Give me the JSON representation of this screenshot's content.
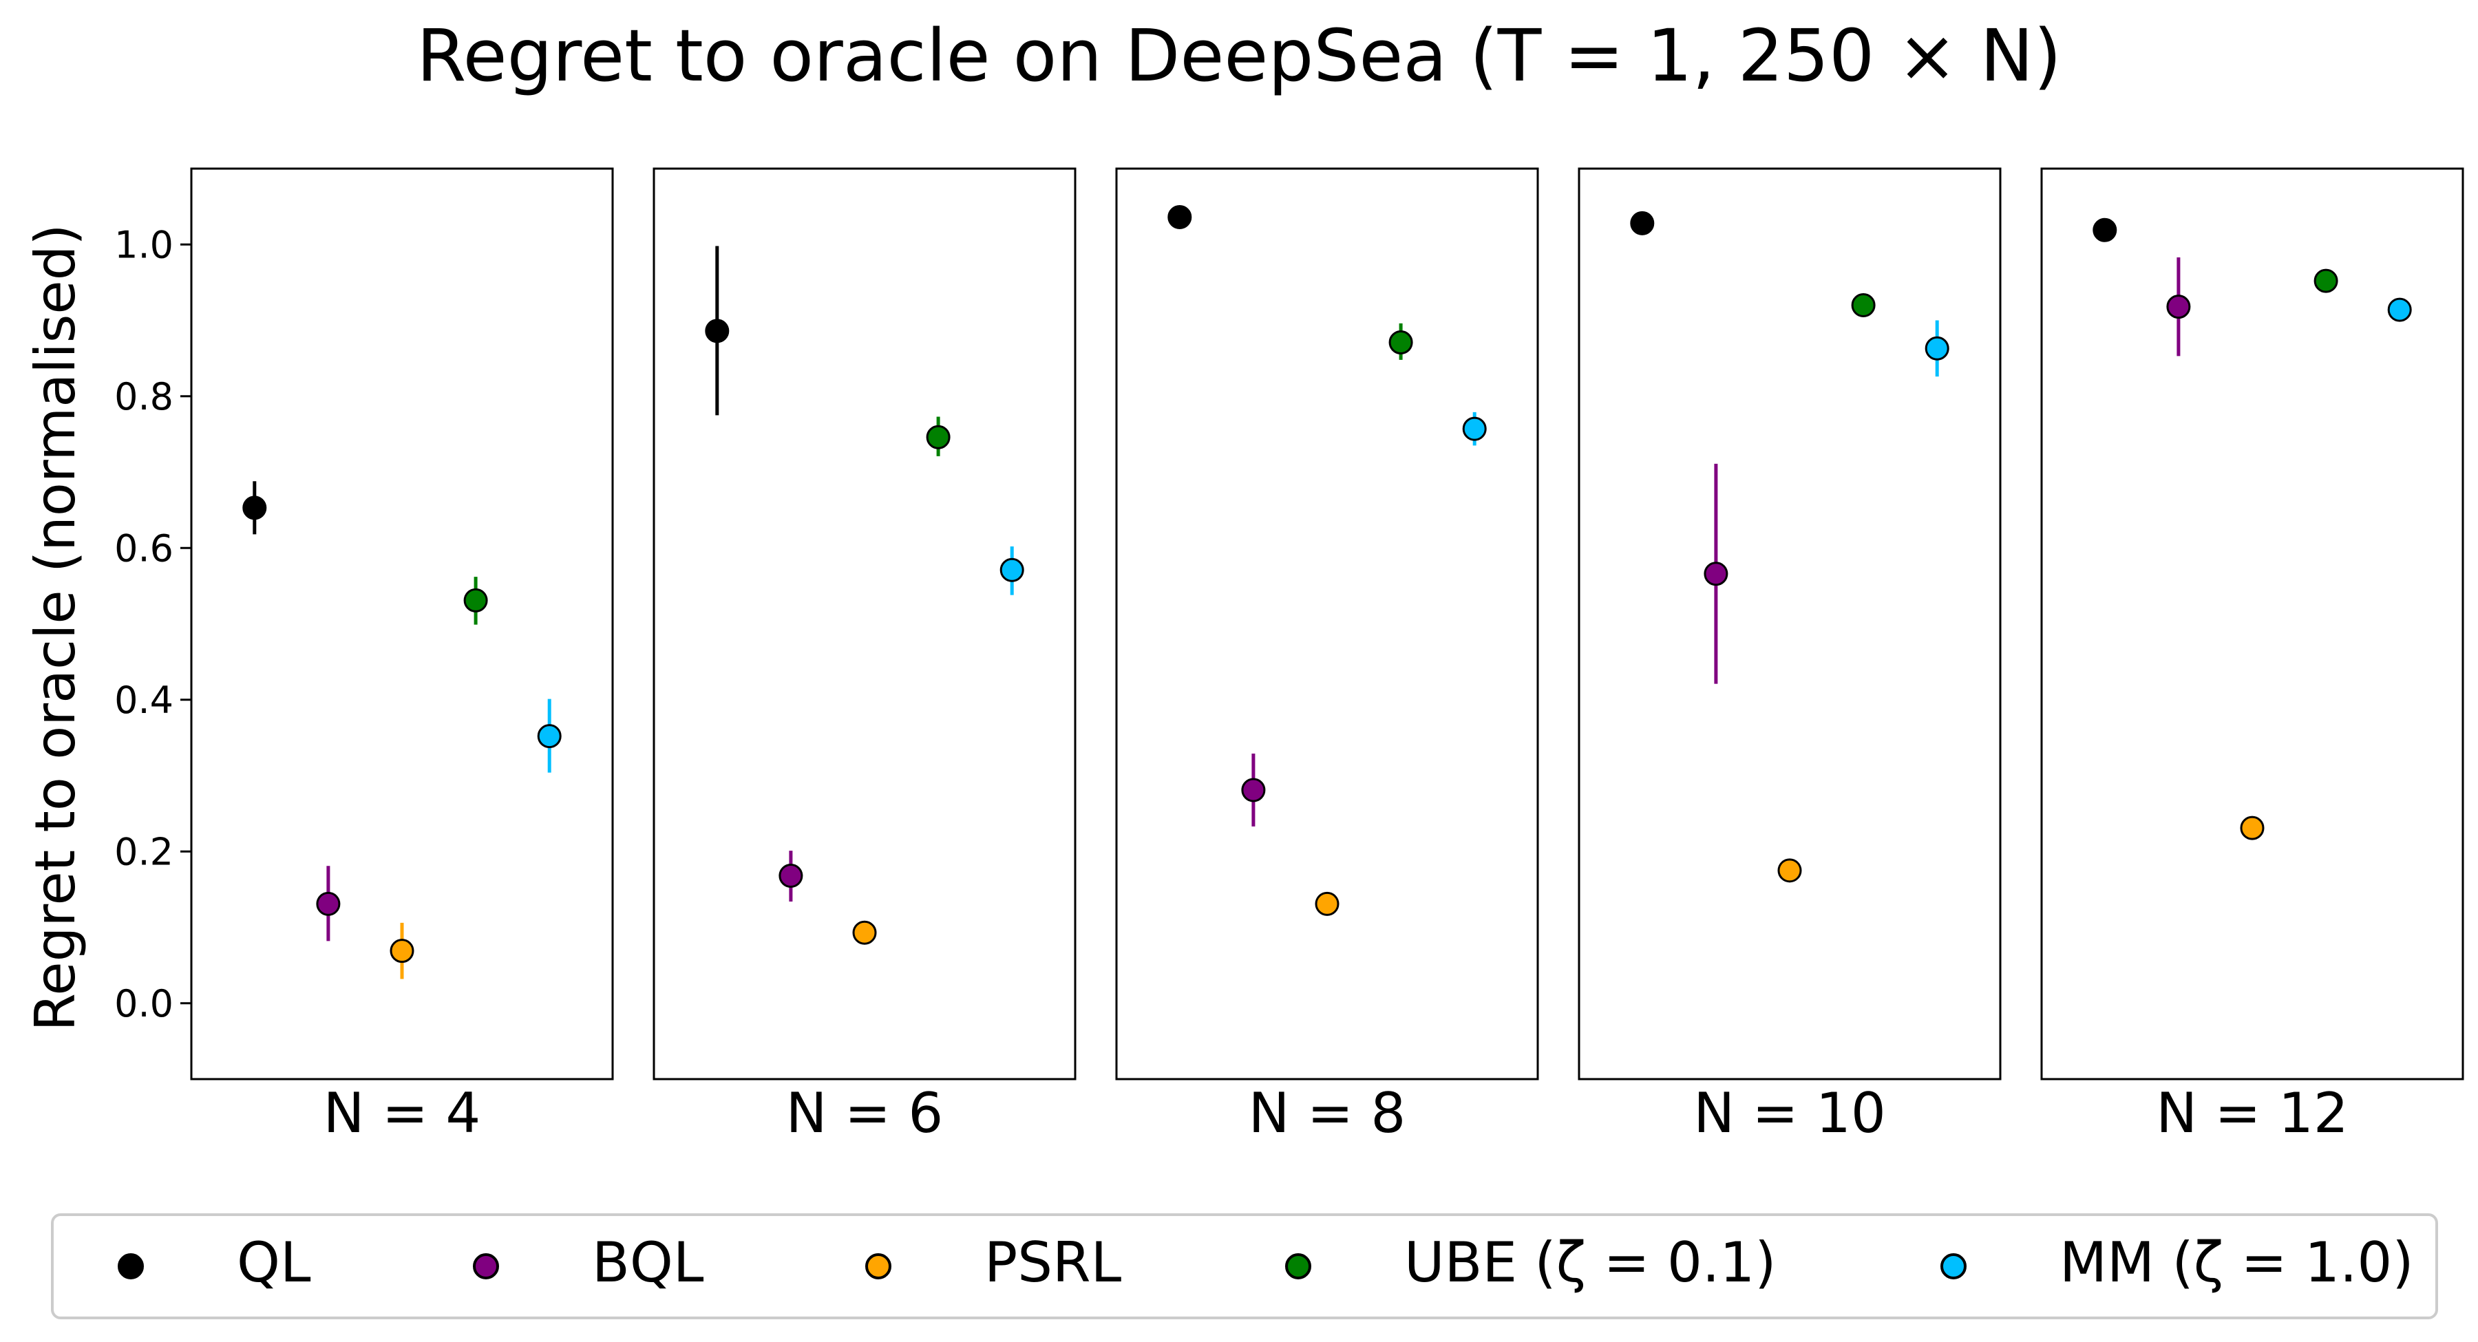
{
  "chart_data": {
    "type": "scatter",
    "title": "Regret to oracle on DeepSea (T = 1, 250 × N)",
    "ylabel": "Regret to oracle (normalised)",
    "ylim": [
      -0.1,
      1.1
    ],
    "yticks": [
      "0.0",
      "0.2",
      "0.4",
      "0.6",
      "0.8",
      "1.0"
    ],
    "grid": false,
    "legend_position": "bottom",
    "panels": [
      {
        "label": "N = 4",
        "points": [
          {
            "series": "QL",
            "y": 0.653,
            "err": [
              0.618,
              0.688
            ]
          },
          {
            "series": "BQL",
            "y": 0.131,
            "err": [
              0.082,
              0.181
            ]
          },
          {
            "series": "PSRL",
            "y": 0.069,
            "err": [
              0.032,
              0.106
            ]
          },
          {
            "series": "UBE",
            "y": 0.531,
            "err": [
              0.499,
              0.562
            ]
          },
          {
            "series": "MM",
            "y": 0.352,
            "err": [
              0.304,
              0.401
            ]
          }
        ]
      },
      {
        "label": "N = 6",
        "points": [
          {
            "series": "QL",
            "y": 0.886,
            "err": [
              0.775,
              0.998
            ]
          },
          {
            "series": "BQL",
            "y": 0.168,
            "err": [
              0.134,
              0.201
            ]
          },
          {
            "series": "PSRL",
            "y": 0.093,
            "err": [
              0.083,
              0.103
            ]
          },
          {
            "series": "UBE",
            "y": 0.746,
            "err": [
              0.721,
              0.773
            ]
          },
          {
            "series": "MM",
            "y": 0.571,
            "err": [
              0.538,
              0.602
            ]
          }
        ]
      },
      {
        "label": "N = 8",
        "points": [
          {
            "series": "QL",
            "y": 1.036,
            "err": [
              1.026,
              1.046
            ]
          },
          {
            "series": "BQL",
            "y": 0.281,
            "err": [
              0.233,
              0.329
            ]
          },
          {
            "series": "PSRL",
            "y": 0.131,
            "err": [
              0.121,
              0.141
            ]
          },
          {
            "series": "UBE",
            "y": 0.871,
            "err": [
              0.848,
              0.896
            ]
          },
          {
            "series": "MM",
            "y": 0.757,
            "err": [
              0.735,
              0.779
            ]
          }
        ]
      },
      {
        "label": "N = 10",
        "points": [
          {
            "series": "QL",
            "y": 1.028,
            "err": [
              1.018,
              1.038
            ]
          },
          {
            "series": "BQL",
            "y": 0.566,
            "err": [
              0.421,
              0.711
            ]
          },
          {
            "series": "PSRL",
            "y": 0.175,
            "err": [
              0.165,
              0.185
            ]
          },
          {
            "series": "UBE",
            "y": 0.92,
            "err": [
              0.91,
              0.93
            ]
          },
          {
            "series": "MM",
            "y": 0.863,
            "err": [
              0.826,
              0.9
            ]
          }
        ]
      },
      {
        "label": "N = 12",
        "points": [
          {
            "series": "QL",
            "y": 1.019,
            "err": [
              1.009,
              1.029
            ]
          },
          {
            "series": "BQL",
            "y": 0.918,
            "err": [
              0.853,
              0.983
            ]
          },
          {
            "series": "PSRL",
            "y": 0.231,
            "err": [
              0.221,
              0.241
            ]
          },
          {
            "series": "UBE",
            "y": 0.952,
            "err": [
              0.942,
              0.962
            ]
          },
          {
            "series": "MM",
            "y": 0.914,
            "err": [
              0.904,
              0.924
            ]
          }
        ]
      }
    ],
    "series": [
      {
        "key": "QL",
        "name": "QL",
        "color": "#000000"
      },
      {
        "key": "BQL",
        "name": "BQL",
        "color": "#800080"
      },
      {
        "key": "PSRL",
        "name": "PSRL",
        "color": "#ffa500"
      },
      {
        "key": "UBE",
        "name": "UBE (ζ = 0.1)",
        "color": "#008000"
      },
      {
        "key": "MM",
        "name": "MM (ζ = 1.0)",
        "color": "#00bfff"
      }
    ]
  }
}
